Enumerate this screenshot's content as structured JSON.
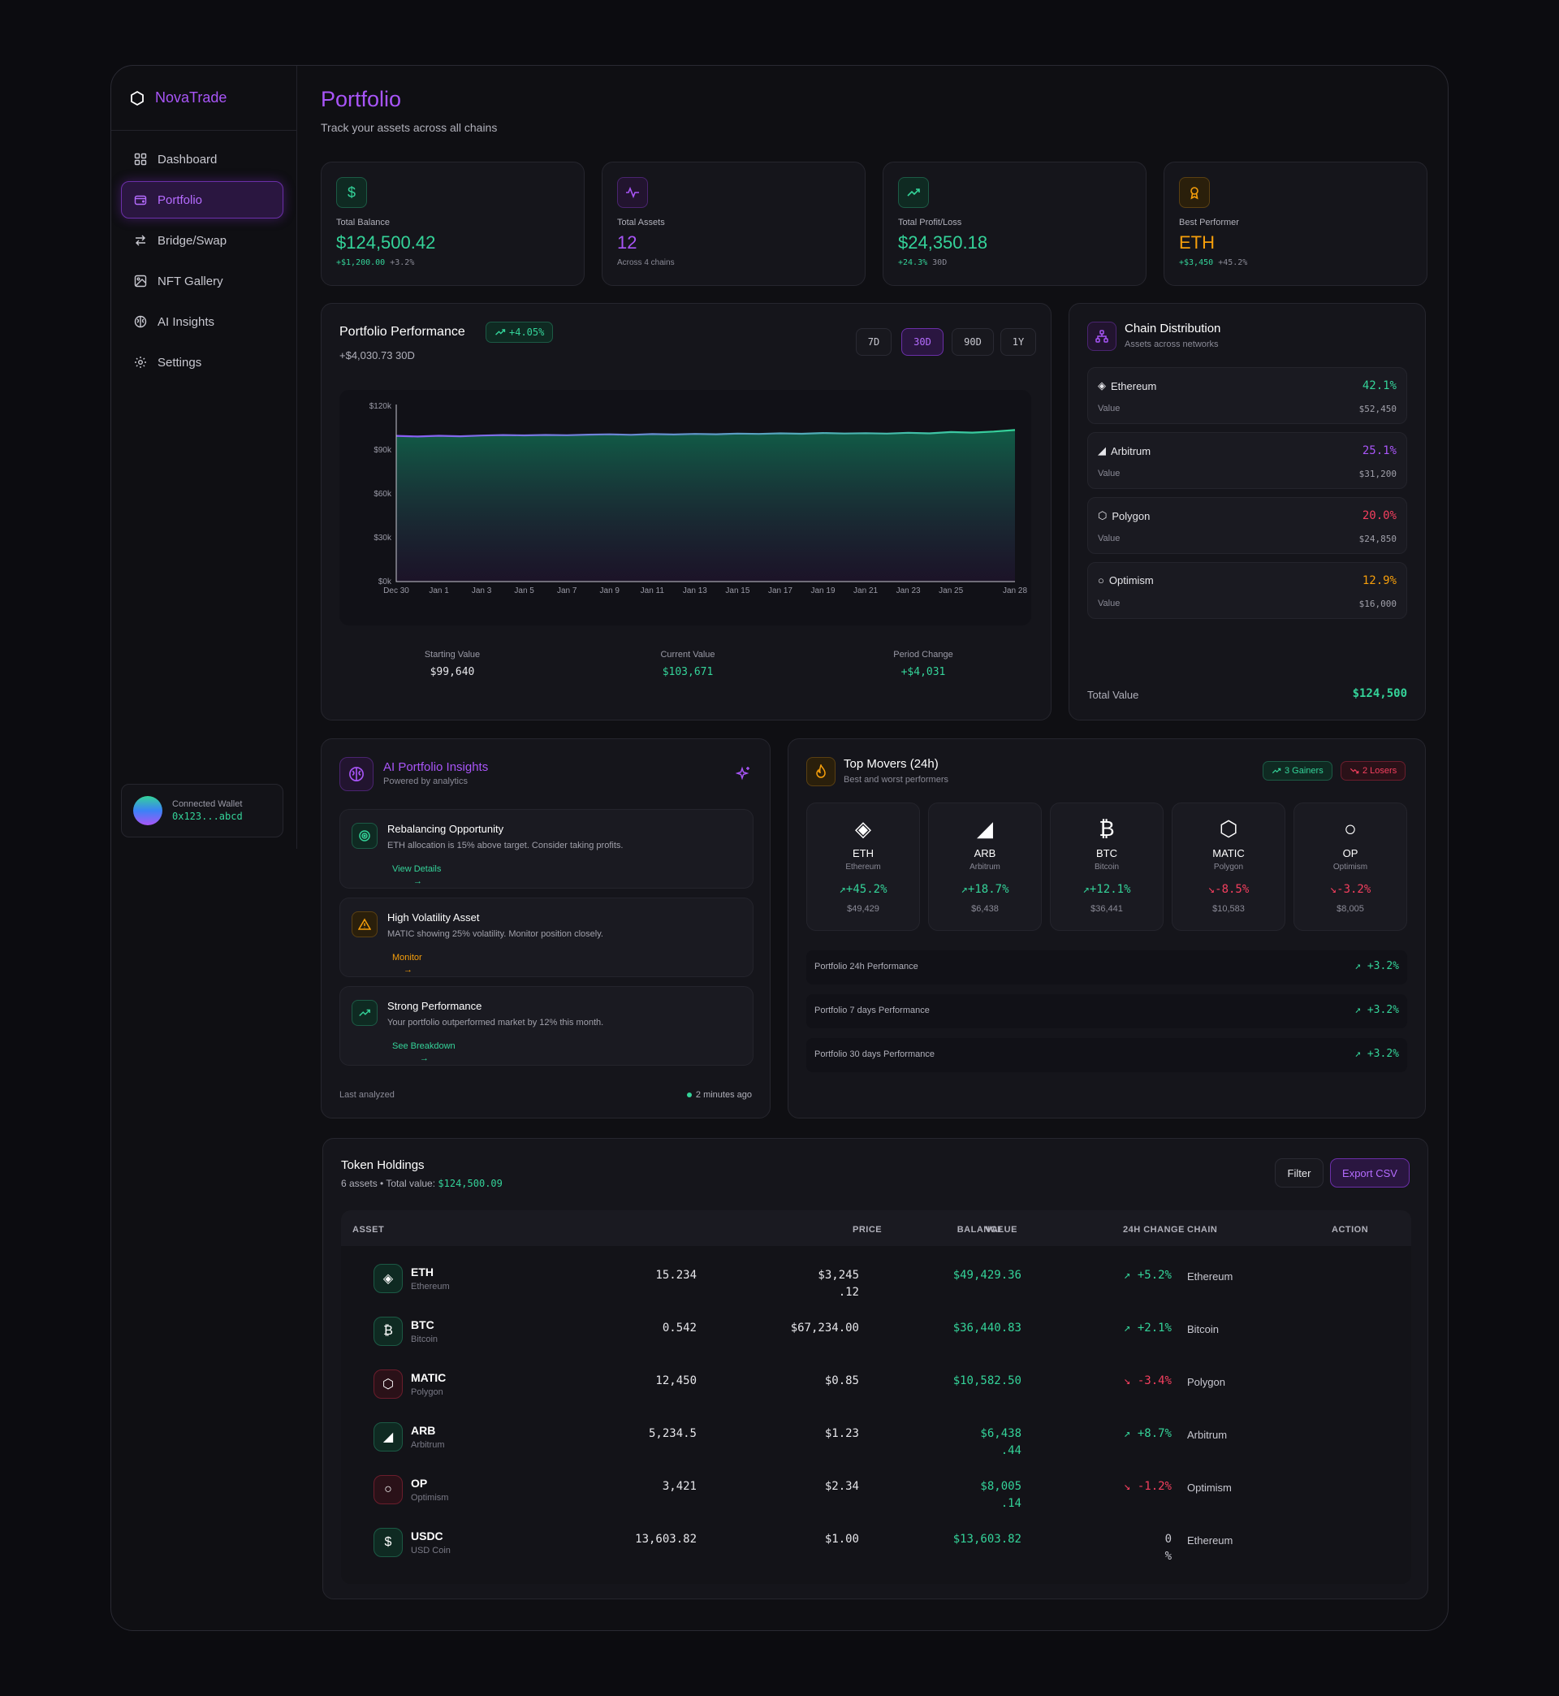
{
  "brand": {
    "name": "NovaTrade"
  },
  "sidebar": {
    "items": [
      {
        "label": "Dashboard",
        "icon": "grid-icon"
      },
      {
        "label": "Portfolio",
        "icon": "wallet-icon",
        "active": true
      },
      {
        "label": "Bridge/Swap",
        "icon": "swap-icon"
      },
      {
        "label": "NFT Gallery",
        "icon": "image-icon"
      },
      {
        "label": "AI Insights",
        "icon": "brain-icon"
      },
      {
        "label": "Settings",
        "icon": "gear-icon"
      }
    ],
    "wallet": {
      "label": "Connected Wallet",
      "address": "0x123...abcd"
    }
  },
  "header": {
    "title": "Portfolio",
    "subtitle": "Track your assets across all chains"
  },
  "stats": [
    {
      "label": "Total Balance",
      "value": "$124,500.42",
      "sub_a": "+$1,200.00",
      "sub_b": "+3.2%",
      "icon": "dollar-icon",
      "color": "#34d399"
    },
    {
      "label": "Total Assets",
      "value": "12",
      "sub_a": "",
      "sub_b": "Across 4 chains",
      "icon": "activity-icon",
      "color": "#a855f7"
    },
    {
      "label": "Total Profit/Loss",
      "value": "$24,350.18",
      "sub_a": "+24.3%",
      "sub_b": "30D",
      "icon": "trending-up-icon",
      "color": "#34d399"
    },
    {
      "label": "Best Performer",
      "value": "ETH",
      "sub_a": "+$3,450",
      "sub_b": "+45.2%",
      "icon": "award-icon",
      "color": "#f59e0b"
    }
  ],
  "performance": {
    "title": "Portfolio Performance",
    "badge": "+4.05%",
    "subtitle": "+$4,030.73 30D",
    "ranges": [
      "7D",
      "30D",
      "90D",
      "1Y"
    ],
    "active_range": "30D",
    "footer": [
      {
        "label": "Starting Value",
        "value": "$99,640"
      },
      {
        "label": "Current Value",
        "value": "$103,671"
      },
      {
        "label": "Period Change",
        "value": "+$4,031"
      }
    ]
  },
  "chart_data": {
    "type": "area",
    "title": "",
    "xlabel": "",
    "ylabel": "",
    "x_ticks": [
      "Dec 30",
      "Jan 1",
      "Jan 3",
      "Jan 5",
      "Jan 7",
      "Jan 9",
      "Jan 11",
      "Jan 13",
      "Jan 15",
      "Jan 17",
      "Jan 19",
      "Jan 21",
      "Jan 23",
      "Jan 25",
      "Jan 28"
    ],
    "y_ticks": [
      "$0k",
      "$30k",
      "$60k",
      "$90k",
      "$120k"
    ],
    "ylim": [
      0,
      120000
    ],
    "x": [
      "Dec 30",
      "Dec 31",
      "Jan 1",
      "Jan 2",
      "Jan 3",
      "Jan 4",
      "Jan 5",
      "Jan 6",
      "Jan 7",
      "Jan 8",
      "Jan 9",
      "Jan 10",
      "Jan 11",
      "Jan 12",
      "Jan 13",
      "Jan 14",
      "Jan 15",
      "Jan 16",
      "Jan 17",
      "Jan 18",
      "Jan 19",
      "Jan 20",
      "Jan 21",
      "Jan 22",
      "Jan 23",
      "Jan 24",
      "Jan 25",
      "Jan 26",
      "Jan 27",
      "Jan 28"
    ],
    "values": [
      99640,
      99200,
      99700,
      99400,
      99900,
      100200,
      100000,
      100300,
      100100,
      100500,
      100700,
      100400,
      100900,
      100600,
      101000,
      100800,
      101200,
      101000,
      101400,
      101100,
      101600,
      101300,
      101500,
      101200,
      101800,
      101400,
      102300,
      101900,
      102600,
      103671
    ],
    "grid": false
  },
  "chains": {
    "title": "Chain Distribution",
    "subtitle": "Assets across networks",
    "value_label": "Value",
    "items": [
      {
        "name": "Ethereum",
        "pct": "42.1%",
        "value": "$52,450",
        "icon": "ethereum-icon",
        "color": "#34d399"
      },
      {
        "name": "Arbitrum",
        "pct": "25.1%",
        "value": "$31,200",
        "icon": "arbitrum-icon",
        "color": "#a855f7"
      },
      {
        "name": "Polygon",
        "pct": "20.0%",
        "value": "$24,850",
        "icon": "polygon-icon",
        "color": "#f43f5e"
      },
      {
        "name": "Optimism",
        "pct": "12.9%",
        "value": "$16,000",
        "icon": "optimism-icon",
        "color": "#f59e0b"
      }
    ],
    "total_label": "Total Value",
    "total_value": "$124,500"
  },
  "insights": {
    "title": "AI Portfolio Insights",
    "subtitle": "Powered by analytics",
    "items": [
      {
        "title": "Rebalancing Opportunity",
        "desc": "ETH allocation is 15% above target. Consider taking profits.",
        "link": "View Details",
        "icon": "target-icon",
        "color": "#34d399"
      },
      {
        "title": "High Volatility Asset",
        "desc": "MATIC showing 25% volatility. Monitor position closely.",
        "link": "Monitor",
        "icon": "warning-icon",
        "color": "#f59e0b"
      },
      {
        "title": "Strong Performance",
        "desc": "Your portfolio outperformed market by 12% this month.",
        "link": "See Breakdown",
        "icon": "trending-up-icon",
        "color": "#34d399"
      }
    ],
    "footer_label": "Last analyzed",
    "footer_time": "2 minutes ago"
  },
  "movers": {
    "title": "Top Movers (24h)",
    "subtitle": "Best and worst performers",
    "gainers": "3 Gainers",
    "losers": "2 Losers",
    "items": [
      {
        "symbol": "ETH",
        "name": "Ethereum",
        "change": "+45.2%",
        "value": "$49,429",
        "up": true,
        "glyph": "◈"
      },
      {
        "symbol": "ARB",
        "name": "Arbitrum",
        "change": "+18.7%",
        "value": "$6,438",
        "up": true,
        "glyph": "◢"
      },
      {
        "symbol": "BTC",
        "name": "Bitcoin",
        "change": "+12.1%",
        "value": "$36,441",
        "up": true,
        "glyph": "₿"
      },
      {
        "symbol": "MATIC",
        "name": "Polygon",
        "change": "-8.5%",
        "value": "$10,583",
        "up": false,
        "glyph": "⬡"
      },
      {
        "symbol": "OP",
        "name": "Optimism",
        "change": "-3.2%",
        "value": "$8,005",
        "up": false,
        "glyph": "○"
      }
    ],
    "periods": [
      {
        "label": "Portfolio 24h Performance",
        "value": "+3.2%"
      },
      {
        "label": "Portfolio 7 days Performance",
        "value": "+3.2%"
      },
      {
        "label": "Portfolio 30 days Performance",
        "value": "+3.2%"
      }
    ]
  },
  "holdings": {
    "title": "Token Holdings",
    "subtitle": "6 assets • Total value:",
    "total": "$124,500.09",
    "filter_label": "Filter",
    "export_label": "Export CSV",
    "columns": [
      "ASSET",
      "BALANCE",
      "PRICE",
      "VALUE",
      "24H CHANGE",
      "CHAIN",
      "ACTION"
    ],
    "rows": [
      {
        "symbol": "ETH",
        "name": "Ethereum",
        "balance": "15.234",
        "price_a": "$3,245",
        "price_b": ".12",
        "value_a": "$49,429.36",
        "value_b": "",
        "change_a": "+5.2%",
        "change_b": "",
        "dir": "up",
        "chain": "Ethereum",
        "glyph": "◈",
        "color": "#34d399"
      },
      {
        "symbol": "BTC",
        "name": "Bitcoin",
        "balance": "0.542",
        "price_a": "$67,234.00",
        "price_b": "",
        "value_a": "$36,440.83",
        "value_b": "",
        "change_a": "+2.1%",
        "change_b": "",
        "dir": "up",
        "chain": "Bitcoin",
        "glyph": "₿",
        "color": "#34d399"
      },
      {
        "symbol": "MATIC",
        "name": "Polygon",
        "balance": "12,450",
        "price_a": "$0.85",
        "price_b": "",
        "value_a": "$10,582.50",
        "value_b": "",
        "change_a": "-3.4%",
        "change_b": "",
        "dir": "down",
        "chain": "Polygon",
        "glyph": "⬡",
        "color": "#f43f5e"
      },
      {
        "symbol": "ARB",
        "name": "Arbitrum",
        "balance": "5,234.5",
        "price_a": "$1.23",
        "price_b": "",
        "value_a": "$6,438",
        "value_b": ".44",
        "change_a": "+8.7%",
        "change_b": "",
        "dir": "up",
        "chain": "Arbitrum",
        "glyph": "◢",
        "color": "#34d399"
      },
      {
        "symbol": "OP",
        "name": "Optimism",
        "balance": "3,421",
        "price_a": "$2.34",
        "price_b": "",
        "value_a": "$8,005",
        "value_b": ".14",
        "change_a": "-1.2%",
        "change_b": "",
        "dir": "down",
        "chain": "Optimism",
        "glyph": "○",
        "color": "#f43f5e"
      },
      {
        "symbol": "USDC",
        "name": "USD Coin",
        "balance": "13,603.82",
        "price_a": "$1.00",
        "price_b": "",
        "value_a": "$13,603.82",
        "value_b": "",
        "change_a": "0",
        "change_b": "%",
        "dir": "flat",
        "chain": "Ethereum",
        "glyph": "$",
        "color": "#34d399"
      }
    ]
  }
}
